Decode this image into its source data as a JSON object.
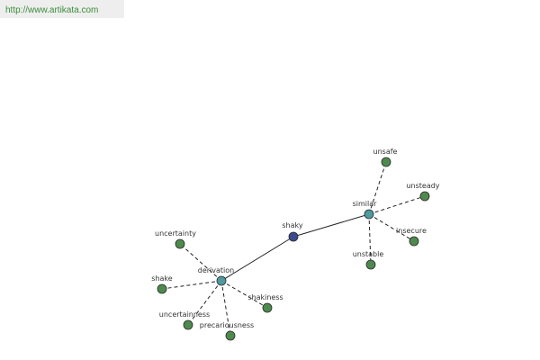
{
  "header": {
    "url": "http://www.artikata.com"
  },
  "nodes": [
    {
      "label": "shaky"
    },
    {
      "label": "similar"
    },
    {
      "label": "derivation"
    },
    {
      "label": "unsafe"
    },
    {
      "label": "unsteady"
    },
    {
      "label": "insecure"
    },
    {
      "label": "unstable"
    },
    {
      "label": "uncertainty"
    },
    {
      "label": "shake"
    },
    {
      "label": "uncertainness"
    },
    {
      "label": "precariousness"
    },
    {
      "label": "shakiness"
    }
  ]
}
